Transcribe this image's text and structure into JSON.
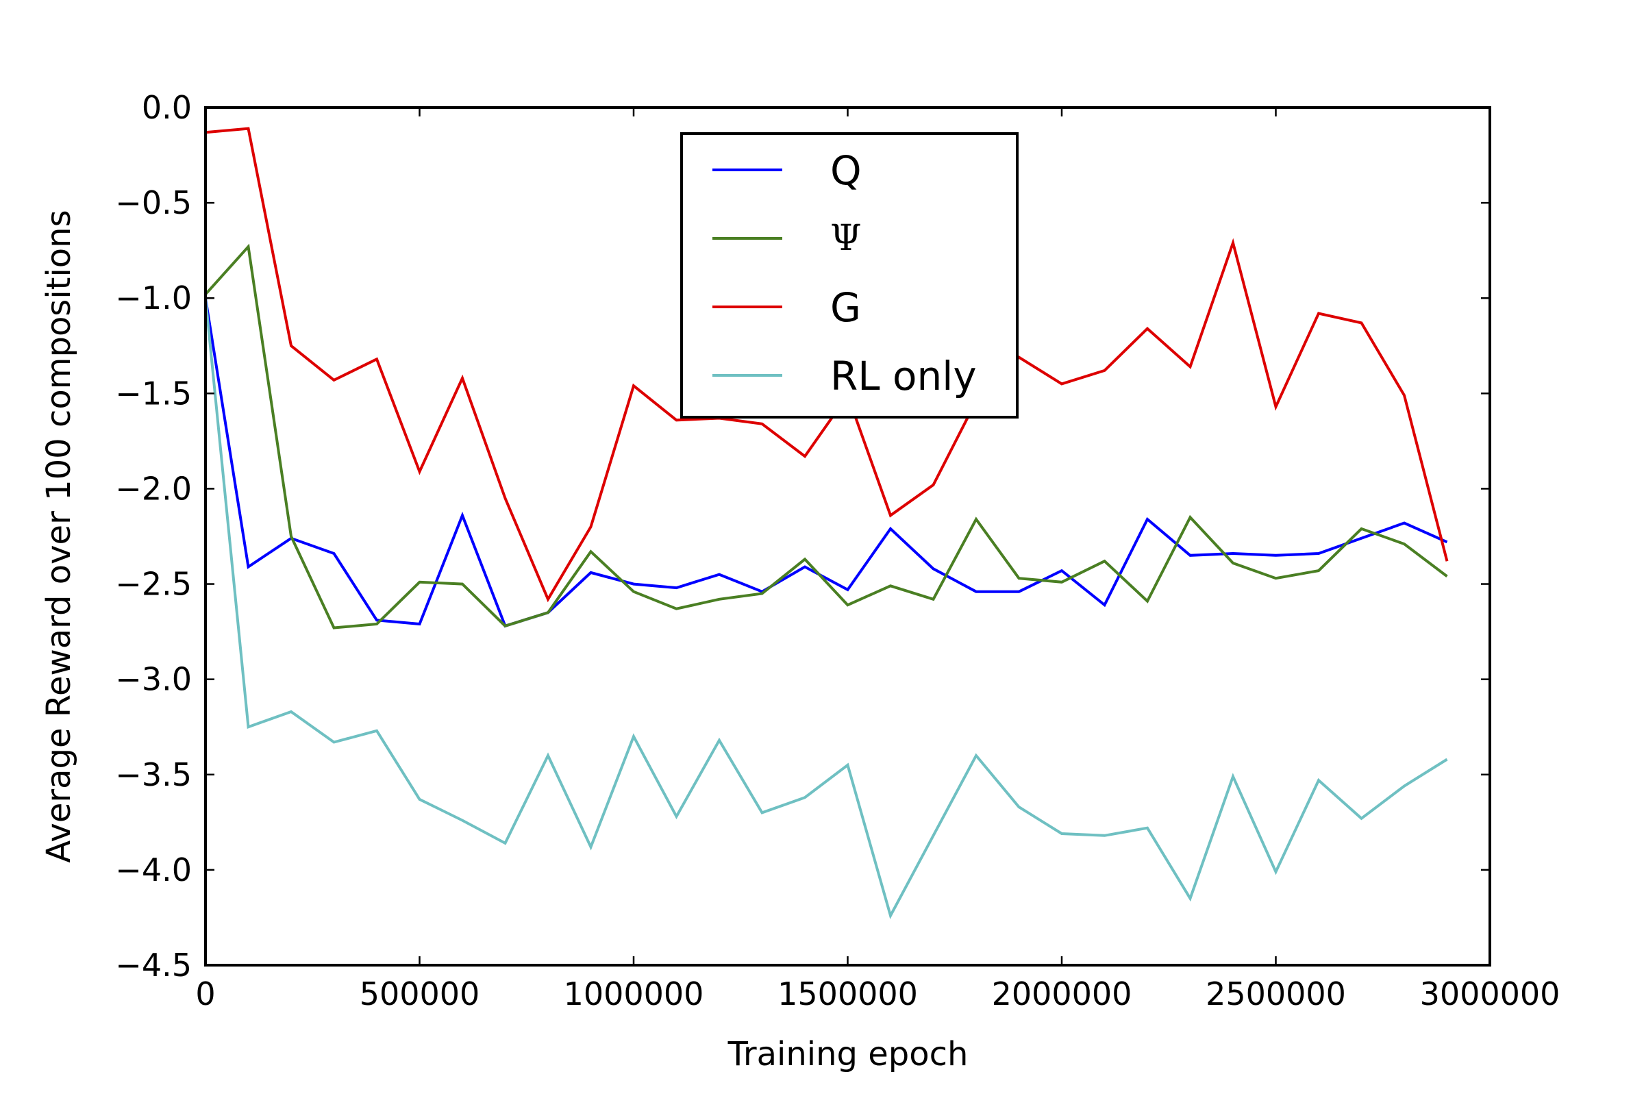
{
  "chart_data": {
    "type": "line",
    "title": "",
    "xlabel": "Training epoch",
    "ylabel": "Average Reward over 100 compositions",
    "xlim": [
      0,
      3000000
    ],
    "ylim": [
      -4.5,
      0.0
    ],
    "x_ticks": [
      0,
      500000,
      1000000,
      1500000,
      2000000,
      2500000,
      3000000
    ],
    "x_tick_labels": [
      "0",
      "500000",
      "1000000",
      "1500000",
      "2000000",
      "2500000",
      "3000000"
    ],
    "y_ticks": [
      0.0,
      -0.5,
      -1.0,
      -1.5,
      -2.0,
      -2.5,
      -3.0,
      -3.5,
      -4.0,
      -4.5
    ],
    "y_tick_labels": [
      "0.0",
      "−0.5",
      "−1.0",
      "−1.5",
      "−2.0",
      "−2.5",
      "−3.0",
      "−3.5",
      "−4.0",
      "−4.5"
    ],
    "grid": false,
    "legend_position": "top-center",
    "x": [
      0,
      100000,
      200000,
      300000,
      400000,
      500000,
      600000,
      700000,
      800000,
      900000,
      1000000,
      1100000,
      1200000,
      1300000,
      1400000,
      1500000,
      1600000,
      1700000,
      1800000,
      1900000,
      2000000,
      2100000,
      2200000,
      2300000,
      2400000,
      2500000,
      2600000,
      2700000,
      2800000,
      2900000
    ],
    "series": [
      {
        "name": "Q",
        "color": "#0000ff",
        "values": [
          -1.0,
          -2.41,
          -2.26,
          -2.34,
          -2.69,
          -2.71,
          -2.14,
          -2.72,
          -2.65,
          -2.44,
          -2.5,
          -2.52,
          -2.45,
          -2.54,
          -2.41,
          -2.53,
          -2.21,
          -2.42,
          -2.54,
          -2.54,
          -2.43,
          -2.61,
          -2.16,
          -2.35,
          -2.34,
          -2.35,
          -2.34,
          -2.26,
          -2.18,
          -2.28
        ]
      },
      {
        "name": "Ψ",
        "color": "#4a7f23",
        "values": [
          -0.98,
          -0.73,
          -2.25,
          -2.73,
          -2.71,
          -2.49,
          -2.5,
          -2.72,
          -2.65,
          -2.33,
          -2.54,
          -2.63,
          -2.58,
          -2.55,
          -2.37,
          -2.61,
          -2.51,
          -2.58,
          -2.16,
          -2.47,
          -2.49,
          -2.38,
          -2.59,
          -2.15,
          -2.39,
          -2.47,
          -2.43,
          -2.21,
          -2.29,
          -2.46
        ]
      },
      {
        "name": "G",
        "color": "#dd0000",
        "values": [
          -0.13,
          -0.11,
          -1.25,
          -1.43,
          -1.32,
          -1.91,
          -1.42,
          -2.05,
          -2.58,
          -2.2,
          -1.46,
          -1.64,
          -1.63,
          -1.66,
          -1.83,
          -1.51,
          -2.14,
          -1.98,
          -1.54,
          -1.31,
          -1.45,
          -1.38,
          -1.16,
          -1.36,
          -0.71,
          -1.57,
          -1.08,
          -1.13,
          -1.51,
          -2.38
        ]
      },
      {
        "name": "RL only",
        "color": "#6fc0c2",
        "values": [
          -1.0,
          -3.25,
          -3.17,
          -3.33,
          -3.27,
          -3.63,
          -3.74,
          -3.86,
          -3.4,
          -3.88,
          -3.3,
          -3.72,
          -3.32,
          -3.7,
          -3.62,
          -3.45,
          -4.24,
          -3.82,
          -3.4,
          -3.67,
          -3.81,
          -3.82,
          -3.78,
          -4.15,
          -3.51,
          -4.01,
          -3.53,
          -3.73,
          -3.56,
          -3.42
        ]
      }
    ]
  }
}
